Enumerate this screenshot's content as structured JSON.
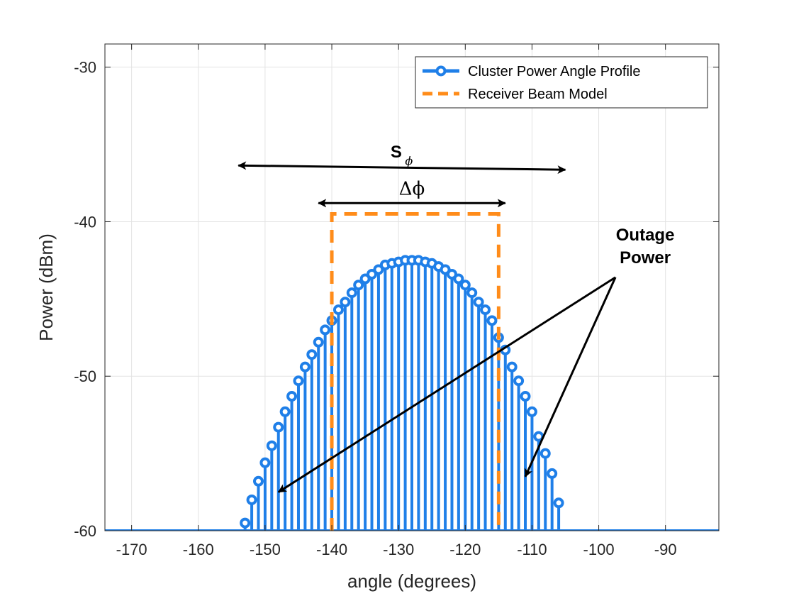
{
  "chart_data": {
    "type": "stem",
    "xlabel": "angle (degrees)",
    "ylabel": "Power (dBm)",
    "xlim": [
      -174,
      -82
    ],
    "ylim": [
      -60,
      -28.5
    ],
    "xticks": [
      -170,
      -160,
      -150,
      -140,
      -130,
      -120,
      -110,
      -100,
      -90
    ],
    "yticks": [
      -60,
      -50,
      -40,
      -30
    ],
    "grid": true,
    "legend_position": "top-right",
    "series": [
      {
        "name": "Cluster Power Angle Profile",
        "style": "stem",
        "color": "#1f7fe8",
        "center": -128,
        "peak": -42.5,
        "x_start": -153,
        "x_end": -106,
        "x_step": 1,
        "y": [
          -59.5,
          -58.0,
          -56.8,
          -55.6,
          -54.5,
          -53.3,
          -52.3,
          -51.3,
          -50.3,
          -49.4,
          -48.6,
          -47.8,
          -47.0,
          -46.4,
          -45.7,
          -45.2,
          -44.6,
          -44.1,
          -43.7,
          -43.4,
          -43.1,
          -42.8,
          -42.7,
          -42.6,
          -42.5,
          -42.5,
          -42.5,
          -42.6,
          -42.7,
          -42.9,
          -43.1,
          -43.4,
          -43.7,
          -44.1,
          -44.6,
          -45.2,
          -45.7,
          -46.4,
          -47.5,
          -48.3,
          -49.4,
          -50.3,
          -51.3,
          -52.3,
          -53.9,
          -55.0,
          -56.3,
          -58.2
        ]
      },
      {
        "name": "Receiver Beam Model",
        "style": "dashed",
        "color": "#ff8c1a",
        "x": [
          -140,
          -140,
          -115,
          -115
        ],
        "y": [
          -60,
          -39.5,
          -39.5,
          -60
        ]
      }
    ],
    "annotations": {
      "s_phi": {
        "main": "S",
        "sub": "ϕ",
        "x_from": -154,
        "x_to": -105,
        "y": -36.5
      },
      "delta_phi": {
        "label": "Δϕ",
        "x_from": -142,
        "x_to": -114,
        "y": -38.8
      },
      "outage": {
        "line1": "Outage",
        "line2": "Power",
        "origin": [
          -97.5,
          -43.6
        ],
        "targets": [
          [
            -148,
            -57.5
          ],
          [
            -111,
            -56.5
          ]
        ]
      }
    }
  }
}
